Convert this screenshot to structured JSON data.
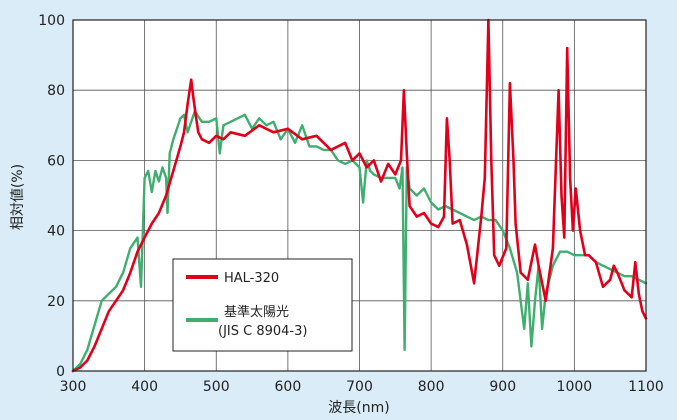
{
  "chart_data": {
    "type": "line",
    "xlabel": "波長(nm)",
    "ylabel": "相対値(%)",
    "xlim": [
      300,
      1100
    ],
    "ylim": [
      0,
      100
    ],
    "xticks": [
      300,
      400,
      500,
      600,
      700,
      800,
      900,
      1000,
      1100
    ],
    "yticks": [
      0,
      20,
      40,
      60,
      80,
      100
    ],
    "grid": true,
    "legend_position": "bottom-left",
    "series": [
      {
        "name": "HAL-320",
        "color": "#e0001b",
        "x": [
          300,
          310,
          320,
          330,
          340,
          350,
          360,
          370,
          380,
          390,
          400,
          410,
          420,
          430,
          440,
          450,
          455,
          460,
          465,
          468,
          472,
          475,
          480,
          490,
          500,
          510,
          520,
          540,
          560,
          580,
          600,
          620,
          640,
          660,
          680,
          690,
          700,
          710,
          720,
          730,
          740,
          750,
          758,
          762,
          766,
          770,
          780,
          790,
          800,
          810,
          818,
          822,
          826,
          830,
          840,
          850,
          860,
          870,
          875,
          880,
          884,
          888,
          895,
          905,
          910,
          915,
          918,
          925,
          935,
          945,
          950,
          960,
          970,
          978,
          982,
          986,
          990,
          994,
          998,
          1002,
          1008,
          1015,
          1020,
          1030,
          1040,
          1050,
          1055,
          1060,
          1070,
          1080,
          1085,
          1090,
          1095,
          1100
        ],
        "y": [
          0,
          1,
          3,
          7,
          12,
          17,
          20,
          23,
          28,
          34,
          38,
          42,
          45,
          50,
          57,
          64,
          68,
          76,
          83,
          78,
          72,
          68,
          66,
          65,
          67,
          66,
          68,
          67,
          70,
          68,
          69,
          66,
          67,
          63,
          65,
          60,
          62,
          58,
          60,
          54,
          59,
          56,
          60,
          80,
          62,
          47,
          44,
          45,
          42,
          41,
          44,
          72,
          60,
          42,
          43,
          36,
          25,
          44,
          55,
          100,
          60,
          33,
          30,
          35,
          82,
          60,
          42,
          28,
          26,
          36,
          30,
          20,
          35,
          80,
          50,
          38,
          92,
          55,
          40,
          52,
          40,
          33,
          33,
          31,
          24,
          26,
          30,
          28,
          23,
          21,
          31,
          22,
          17,
          15
        ]
      },
      {
        "name": "基準太陽光",
        "subname": "(JIS C 8904-3)",
        "color": "#3fae6e",
        "x": [
          300,
          310,
          320,
          330,
          340,
          350,
          360,
          370,
          380,
          390,
          395,
          400,
          405,
          410,
          415,
          420,
          425,
          430,
          432,
          435,
          440,
          445,
          450,
          455,
          460,
          470,
          480,
          490,
          500,
          505,
          510,
          520,
          530,
          540,
          550,
          560,
          570,
          580,
          590,
          600,
          610,
          620,
          630,
          640,
          650,
          660,
          670,
          680,
          690,
          700,
          705,
          710,
          715,
          720,
          730,
          740,
          750,
          756,
          760,
          763,
          766,
          770,
          780,
          790,
          800,
          810,
          820,
          830,
          840,
          850,
          860,
          870,
          880,
          890,
          900,
          910,
          920,
          930,
          935,
          940,
          945,
          950,
          955,
          960,
          970,
          980,
          990,
          1000,
          1010,
          1020,
          1030,
          1040,
          1050,
          1060,
          1070,
          1080,
          1090,
          1100
        ],
        "y": [
          0,
          2,
          6,
          13,
          20,
          22,
          24,
          28,
          35,
          38,
          24,
          55,
          57,
          51,
          57,
          54,
          58,
          55,
          45,
          62,
          66,
          69,
          72,
          73,
          68,
          74,
          71,
          71,
          72,
          62,
          70,
          71,
          72,
          73,
          69,
          72,
          70,
          71,
          66,
          69,
          65,
          70,
          64,
          64,
          63,
          63,
          60,
          59,
          60,
          58,
          48,
          60,
          57,
          56,
          55,
          55,
          55,
          52,
          58,
          6,
          58,
          52,
          50,
          52,
          48,
          46,
          47,
          46,
          45,
          44,
          43,
          44,
          43,
          43,
          40,
          35,
          28,
          12,
          25,
          7,
          20,
          30,
          12,
          22,
          30,
          34,
          34,
          33,
          33,
          33,
          31,
          30,
          29,
          28,
          27,
          27,
          26,
          25
        ]
      }
    ]
  }
}
